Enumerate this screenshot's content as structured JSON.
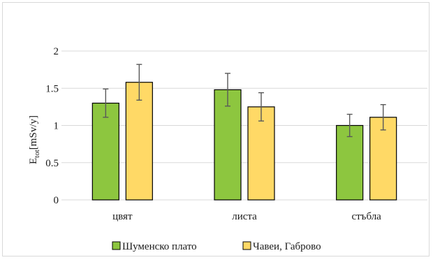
{
  "chart_data": {
    "type": "bar",
    "categories": [
      "цвят",
      "листа",
      "стъбла"
    ],
    "series": [
      {
        "name": "Шуменско плато",
        "values": [
          1.3,
          1.48,
          1.0
        ],
        "errors": [
          0.19,
          0.22,
          0.15
        ],
        "color": "#8dc63f"
      },
      {
        "name": "Чавеи, Габрово",
        "values": [
          1.58,
          1.25,
          1.11
        ],
        "errors": [
          0.24,
          0.19,
          0.17
        ],
        "color": "#ffd966"
      }
    ],
    "ylabel_main": "E",
    "ylabel_sub": "tot",
    "ylabel_unit": "[mSv/y]",
    "ylim": [
      0,
      2
    ],
    "yticks": [
      "0",
      "0.5",
      "1",
      "1.5",
      "2"
    ],
    "ytick_values": [
      0,
      0.5,
      1,
      1.5,
      2
    ],
    "grid": true,
    "legend_position": "bottom",
    "gridline_color": "#d9d9d9",
    "bar_edge_color": "#000000",
    "error_bar_color": "#595959"
  }
}
